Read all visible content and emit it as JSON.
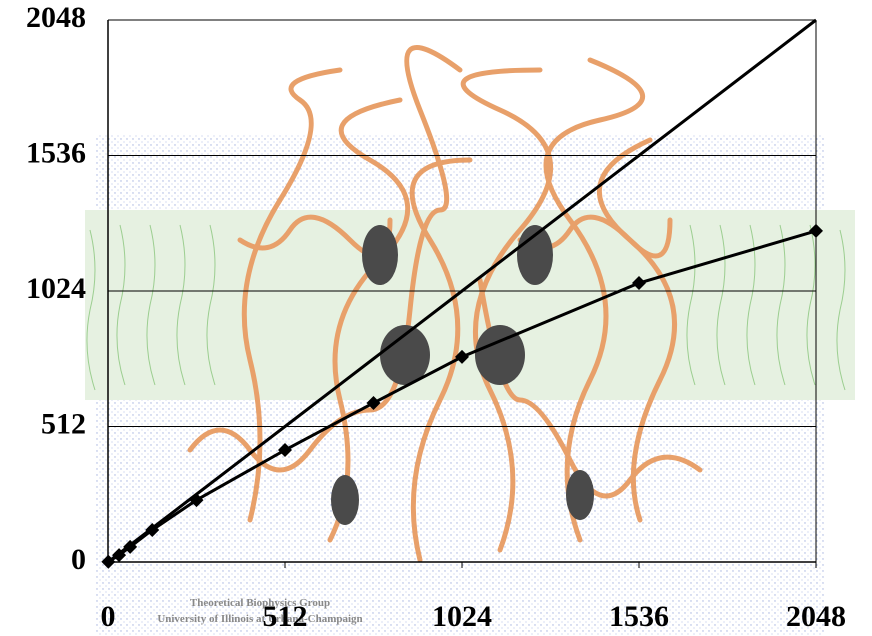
{
  "chart_data": {
    "type": "line",
    "x": [
      1,
      32,
      64,
      128,
      256,
      512,
      768,
      1024,
      1536,
      2048
    ],
    "series": [
      {
        "color": "#000000",
        "markers": false,
        "values": [
          1,
          32,
          64,
          128,
          256,
          512,
          768,
          1024,
          1536,
          2048
        ]
      },
      {
        "color": "#000000",
        "markers": true,
        "values": [
          1,
          26,
          57,
          121,
          234,
          423,
          601,
          775,
          1054,
          1251
        ]
      }
    ],
    "xlim": [
      0,
      2048
    ],
    "ylim": [
      0,
      2048
    ],
    "xticks": [
      0,
      512,
      1024,
      1536,
      2048
    ],
    "yticks": [
      0,
      512,
      1024,
      1536,
      2048
    ],
    "grid": true,
    "watermark": [
      "Theoretical Biophysics Group",
      "University of Illinois at Urbana-Champaign"
    ]
  }
}
